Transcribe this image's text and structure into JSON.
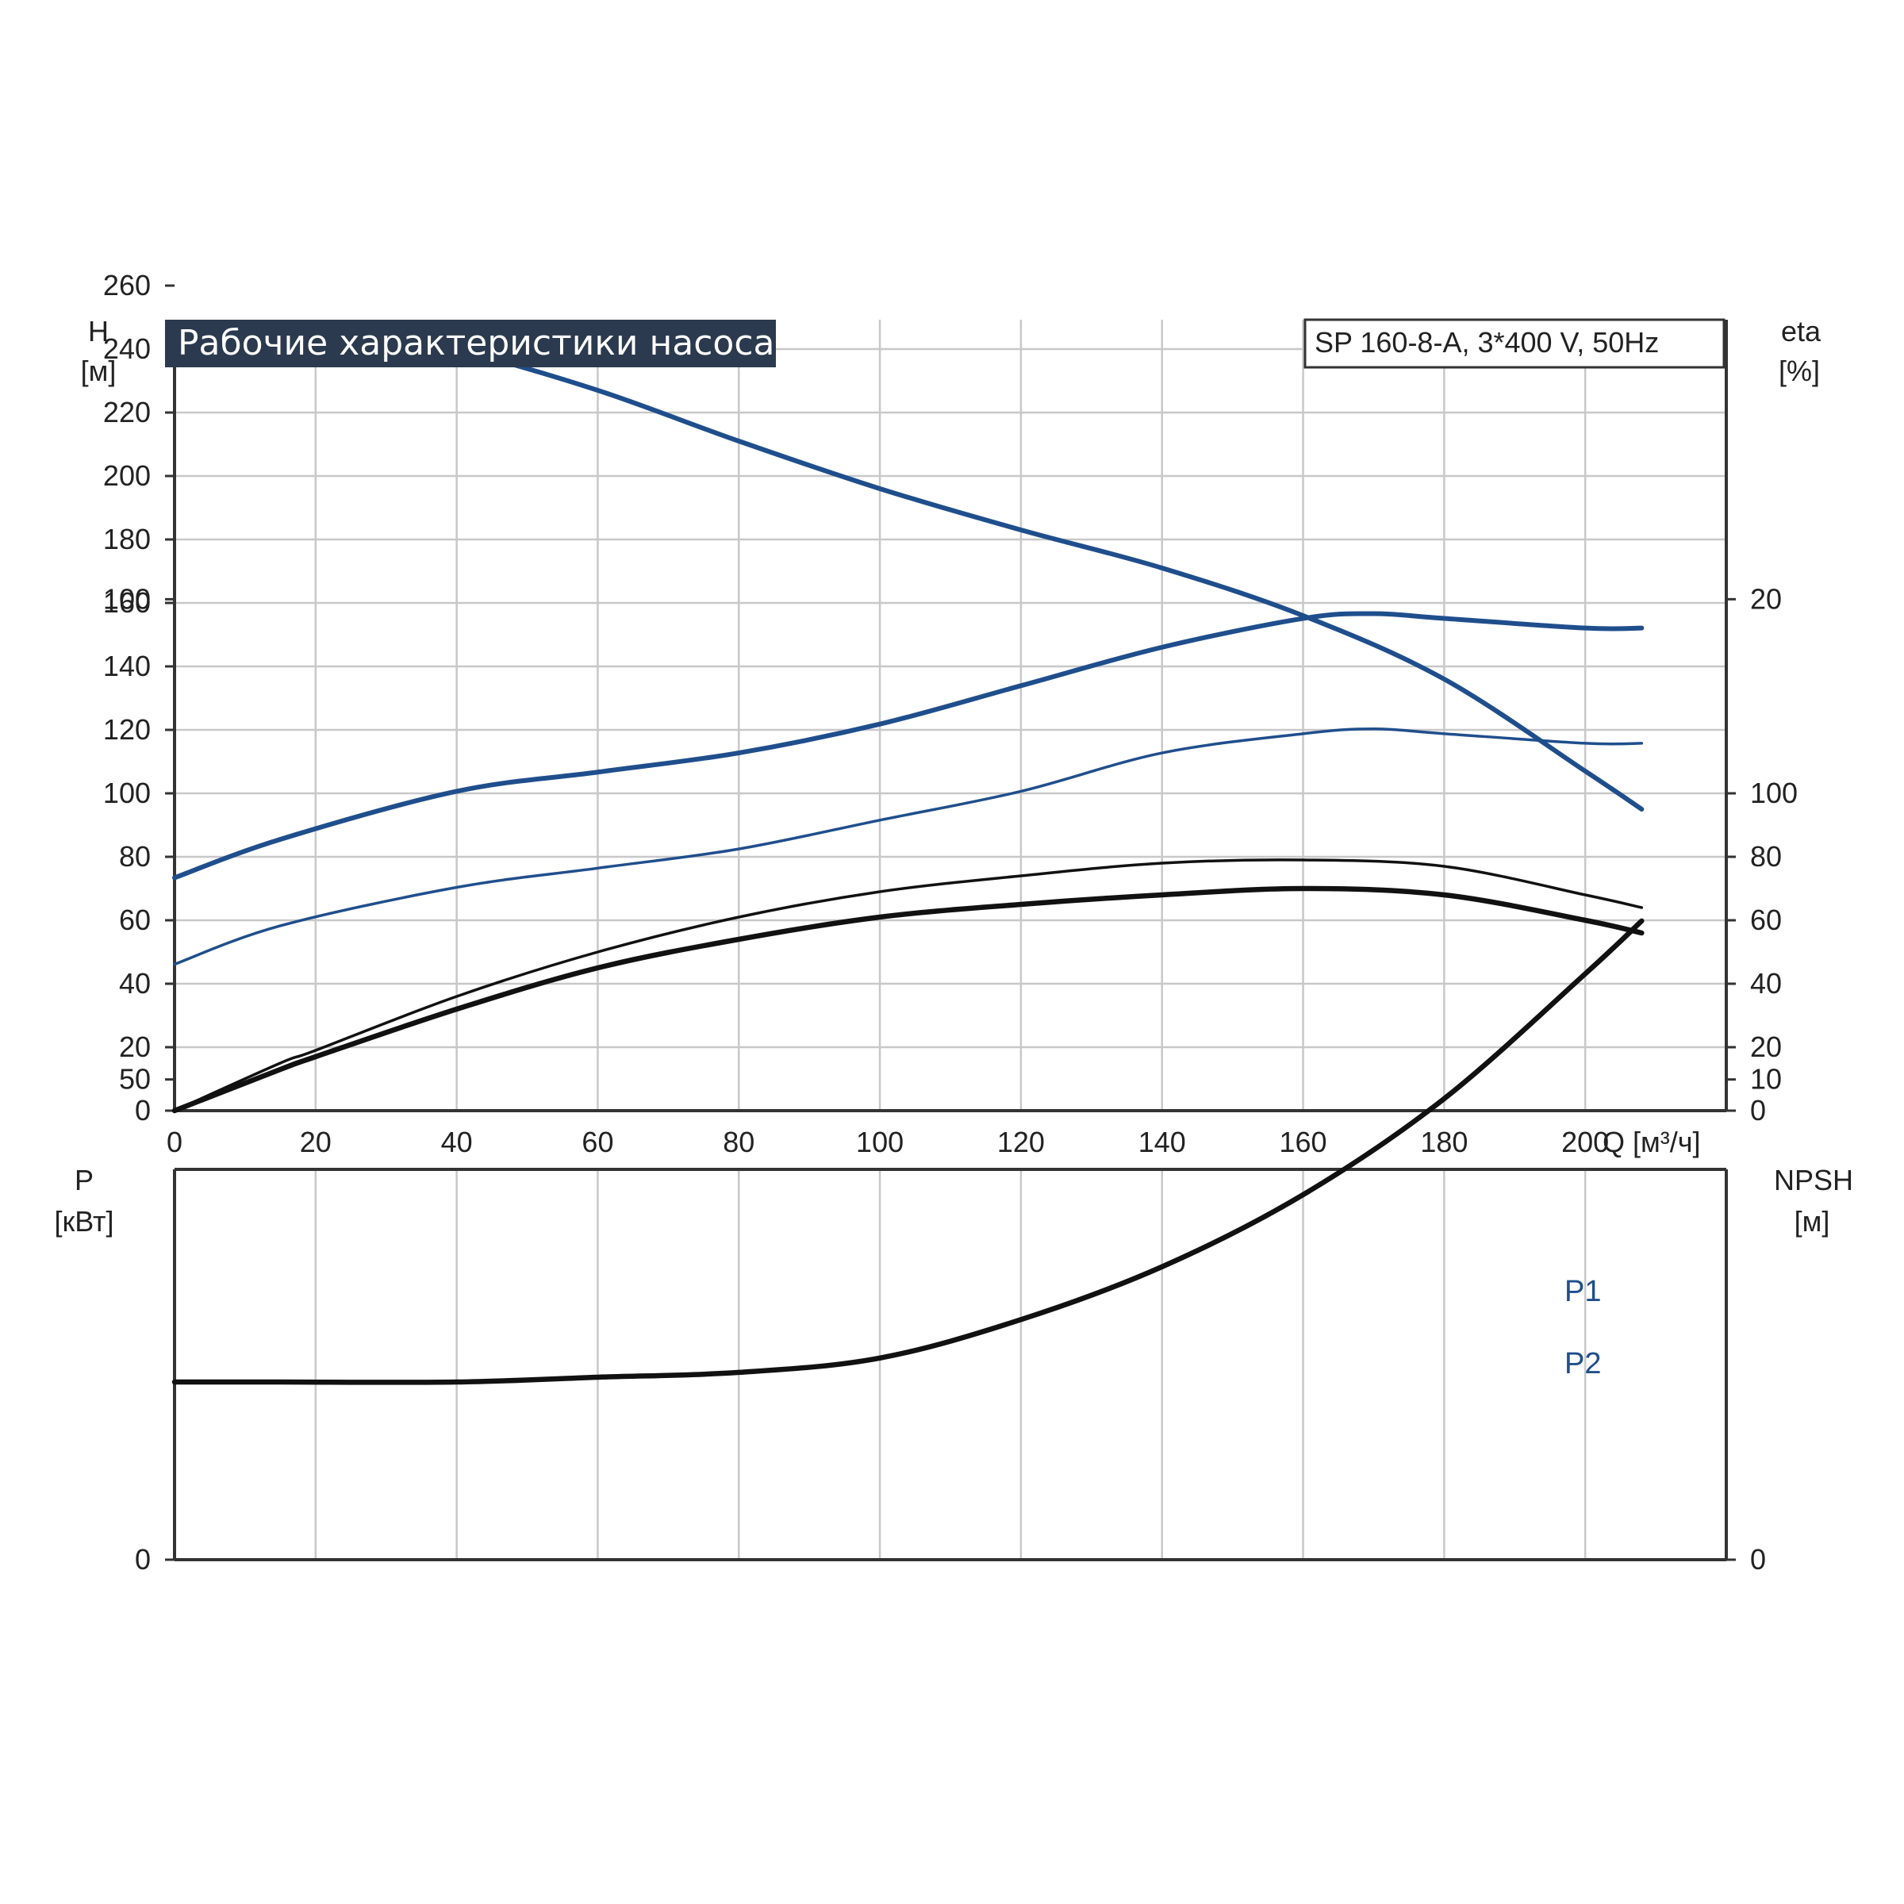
{
  "title": "Рабочие характеристики насоса",
  "model": "SP 160-8-A, 3*400 V, 50Hz",
  "colors": {
    "blue": "#1f4e8c",
    "black": "#111111",
    "title_bg": "#2b3a4e",
    "grid": "#c8c8c8"
  },
  "chart_data": [
    {
      "type": "line",
      "x_unit_label": "Q [м³/ч]",
      "x_ticks": [
        "0",
        "20",
        "40",
        "60",
        "80",
        "100",
        "120",
        "140",
        "160",
        "180",
        "200"
      ],
      "xlim": [
        0,
        220
      ],
      "left_axis": {
        "label": "H",
        "unit": "[м]",
        "ticks": [
          "0",
          "20",
          "40",
          "60",
          "80",
          "100",
          "120",
          "140",
          "160",
          "180",
          "200",
          "220",
          "240",
          "260"
        ],
        "ylim": [
          0,
          280
        ]
      },
      "right_axis": {
        "label": "eta",
        "unit": "[%]",
        "ticks": [
          "0",
          "20",
          "40",
          "60",
          "80",
          "100"
        ],
        "ylim": [
          0,
          280
        ]
      },
      "grid": true,
      "series": [
        {
          "axis": "left",
          "color": "#1f4e8c",
          "width": 6,
          "x": [
            0,
            15,
            30,
            40,
            60,
            80,
            100,
            120,
            140,
            160,
            180,
            200,
            208
          ],
          "y": [
            243,
            246,
            244,
            240,
            227,
            211,
            196,
            183,
            171,
            156,
            136,
            107,
            95
          ]
        },
        {
          "axis": "right",
          "color": "#111111",
          "width": 3.5,
          "x": [
            0,
            15,
            20,
            40,
            60,
            80,
            100,
            120,
            140,
            160,
            180,
            200,
            208
          ],
          "y": [
            0,
            15,
            19,
            36,
            50,
            61,
            69,
            74,
            78,
            79,
            77,
            68,
            64
          ]
        },
        {
          "axis": "right",
          "color": "#111111",
          "width": 6.5,
          "x": [
            0,
            15,
            20,
            40,
            60,
            80,
            100,
            120,
            140,
            160,
            180,
            200,
            208
          ],
          "y": [
            0,
            13,
            17,
            32,
            45,
            54,
            61,
            65,
            68,
            70,
            68,
            60,
            56
          ]
        }
      ]
    },
    {
      "type": "line",
      "x_ticks": [],
      "xlim": [
        0,
        220
      ],
      "left_axis": {
        "label": "P",
        "unit": "[кВт]",
        "ticks": [
          "0",
          "50",
          "100"
        ],
        "ylim": [
          0,
          150
        ]
      },
      "right_axis": {
        "label": "NPSH",
        "unit": "[м]",
        "ticks": [
          "0",
          "10",
          "20"
        ],
        "ylim": [
          0,
          30
        ]
      },
      "grid": true,
      "series": [
        {
          "name": "P1",
          "axis": "left",
          "color": "#1f4e8c",
          "width": 6,
          "x": [
            0,
            15,
            40,
            60,
            80,
            100,
            120,
            140,
            160,
            170,
            180,
            200,
            208
          ],
          "y": [
            71,
            75,
            80,
            82,
            84,
            87,
            91,
            95,
            98,
            98.5,
            98,
            97,
            97
          ]
        },
        {
          "name": "P2",
          "axis": "left",
          "color": "#1f4e8c",
          "width": 3.5,
          "x": [
            0,
            15,
            40,
            60,
            80,
            100,
            120,
            140,
            160,
            170,
            180,
            200,
            208
          ],
          "y": [
            62,
            66,
            70,
            72,
            74,
            77,
            80,
            84,
            86,
            86.5,
            86,
            85,
            85
          ]
        },
        {
          "axis": "right",
          "color": "#111111",
          "width": 6.5,
          "x": [
            0,
            15,
            40,
            60,
            80,
            100,
            120,
            140,
            160,
            180,
            200,
            208
          ],
          "y": [
            3.7,
            3.7,
            3.7,
            3.8,
            3.9,
            4.2,
            5,
            6.1,
            7.6,
            9.6,
            12.2,
            13.3
          ]
        }
      ]
    }
  ]
}
